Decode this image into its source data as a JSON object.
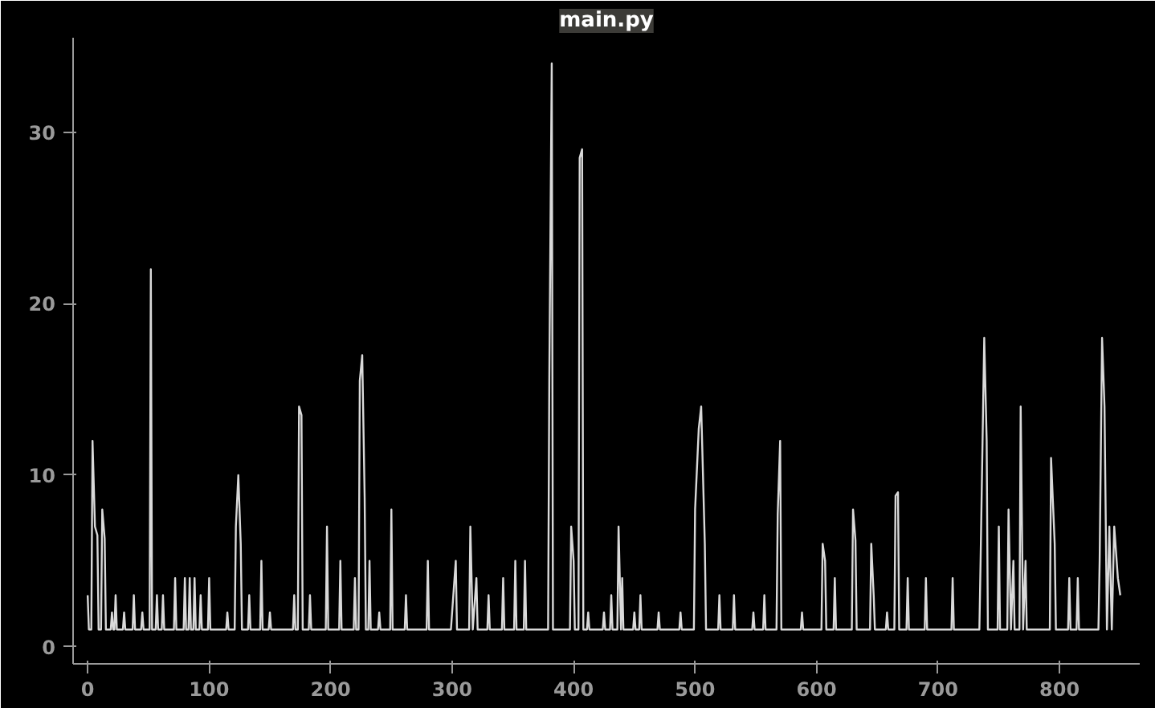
{
  "chart_data": {
    "type": "line",
    "title": "main.py",
    "xlim": [
      -12,
      866
    ],
    "ylim": [
      -1,
      35.5
    ],
    "xticks": [
      0,
      100,
      200,
      300,
      400,
      500,
      600,
      700,
      800
    ],
    "yticks": [
      0,
      10,
      20,
      30
    ],
    "grid": false,
    "line_style": "solid",
    "series": [
      {
        "color": "#d9d9d9",
        "x": [
          0,
          1,
          3,
          4,
          6,
          8,
          9,
          11,
          12,
          14,
          15,
          19,
          20,
          21,
          22,
          23,
          24,
          29,
          30,
          31,
          37,
          38,
          39,
          44,
          45,
          46,
          51,
          52,
          53,
          56,
          57,
          58,
          61,
          62,
          63,
          71,
          72,
          73,
          79,
          80,
          81,
          83,
          84,
          85,
          87,
          88,
          89,
          92,
          93,
          94,
          99,
          100,
          101,
          114,
          115,
          116,
          121,
          122,
          124,
          126,
          127,
          132,
          133,
          134,
          142,
          143,
          144,
          149,
          150,
          151,
          169,
          170,
          171,
          173,
          174,
          176,
          177,
          182,
          183,
          184,
          196,
          197,
          198,
          207,
          208,
          209,
          219,
          220,
          221,
          223,
          224,
          226,
          228,
          229,
          231,
          232,
          233,
          239,
          240,
          241,
          249,
          250,
          251,
          261,
          262,
          263,
          279,
          280,
          281,
          299,
          300,
          303,
          304,
          314,
          315,
          317,
          320,
          321,
          329,
          330,
          331,
          341,
          342,
          343,
          351,
          352,
          353,
          359,
          360,
          361,
          379,
          380,
          382,
          383,
          397,
          398,
          400,
          401,
          404,
          405,
          407,
          408,
          411,
          412,
          413,
          424,
          425,
          426,
          430,
          431,
          432,
          436,
          437,
          439,
          440,
          441,
          449,
          450,
          451,
          454,
          455,
          456,
          469,
          470,
          471,
          487,
          488,
          489,
          499,
          500,
          503,
          505,
          508,
          509,
          519,
          520,
          521,
          531,
          532,
          533,
          547,
          548,
          549,
          556,
          557,
          558,
          567,
          568,
          570,
          571,
          587,
          588,
          589,
          604,
          605,
          607,
          608,
          614,
          615,
          616,
          629,
          630,
          632,
          633,
          644,
          645,
          647,
          648,
          657,
          658,
          659,
          664,
          665,
          667,
          668,
          674,
          675,
          676,
          689,
          690,
          691,
          711,
          712,
          713,
          734,
          735,
          738,
          740,
          741,
          749,
          750,
          751,
          757,
          758,
          760,
          762,
          763,
          767,
          768,
          770,
          772,
          773,
          792,
          793,
          796,
          797,
          807,
          808,
          809,
          814,
          815,
          816,
          832,
          833,
          835,
          837,
          839,
          841,
          843,
          845,
          848,
          850
        ],
        "values": [
          3,
          1,
          1,
          12,
          7,
          6.5,
          1,
          1,
          8,
          6.3,
          1,
          1,
          2,
          1,
          1,
          3,
          1,
          1,
          2,
          1,
          1,
          3,
          1,
          1,
          2,
          1,
          1,
          22,
          1,
          1,
          3,
          1,
          1,
          3,
          1,
          1,
          4,
          1,
          1,
          4,
          1,
          1,
          4,
          1,
          1,
          4,
          1,
          1,
          3,
          1,
          1,
          4,
          1,
          1,
          2,
          1,
          1,
          7,
          10,
          6,
          1,
          1,
          3,
          1,
          1,
          5,
          1,
          1,
          2,
          1,
          1,
          3,
          1,
          1,
          14,
          13.5,
          1,
          1,
          3,
          1,
          1,
          7,
          1,
          1,
          5,
          1,
          1,
          4,
          1,
          1,
          15.5,
          17,
          8.7,
          1,
          1,
          5,
          1,
          1,
          2,
          1,
          1,
          8,
          1,
          1,
          3,
          1,
          1,
          5,
          1,
          1,
          2,
          5,
          1,
          1,
          7,
          1,
          4,
          1,
          1,
          3,
          1,
          1,
          4,
          1,
          1,
          5,
          1,
          1,
          5,
          1,
          1,
          15.7,
          34,
          1,
          1,
          7,
          5,
          1,
          1,
          28.5,
          29,
          1,
          1,
          2,
          1,
          1,
          2,
          1,
          1,
          3,
          1,
          1,
          7,
          1,
          4,
          1,
          1,
          2,
          1,
          1,
          3,
          1,
          1,
          2,
          1,
          1,
          2,
          1,
          1,
          8,
          12.7,
          14,
          6,
          1,
          1,
          3,
          1,
          1,
          3,
          1,
          1,
          2,
          1,
          1,
          3,
          1,
          1,
          7.7,
          12,
          1,
          1,
          2,
          1,
          1,
          6,
          5,
          1,
          1,
          4,
          1,
          1,
          8,
          6.2,
          1,
          1,
          6,
          3,
          1,
          1,
          2,
          1,
          1,
          8.8,
          9,
          1,
          1,
          4,
          1,
          1,
          4,
          1,
          1,
          4,
          1,
          1,
          5,
          18,
          12,
          1,
          1,
          7,
          1,
          1,
          8,
          1,
          5,
          1,
          1,
          14,
          1,
          5,
          1,
          1,
          11,
          6,
          1,
          1,
          4,
          1,
          1,
          4,
          1,
          1,
          5,
          18,
          14,
          1,
          7,
          1,
          7,
          4,
          3
        ]
      }
    ]
  }
}
